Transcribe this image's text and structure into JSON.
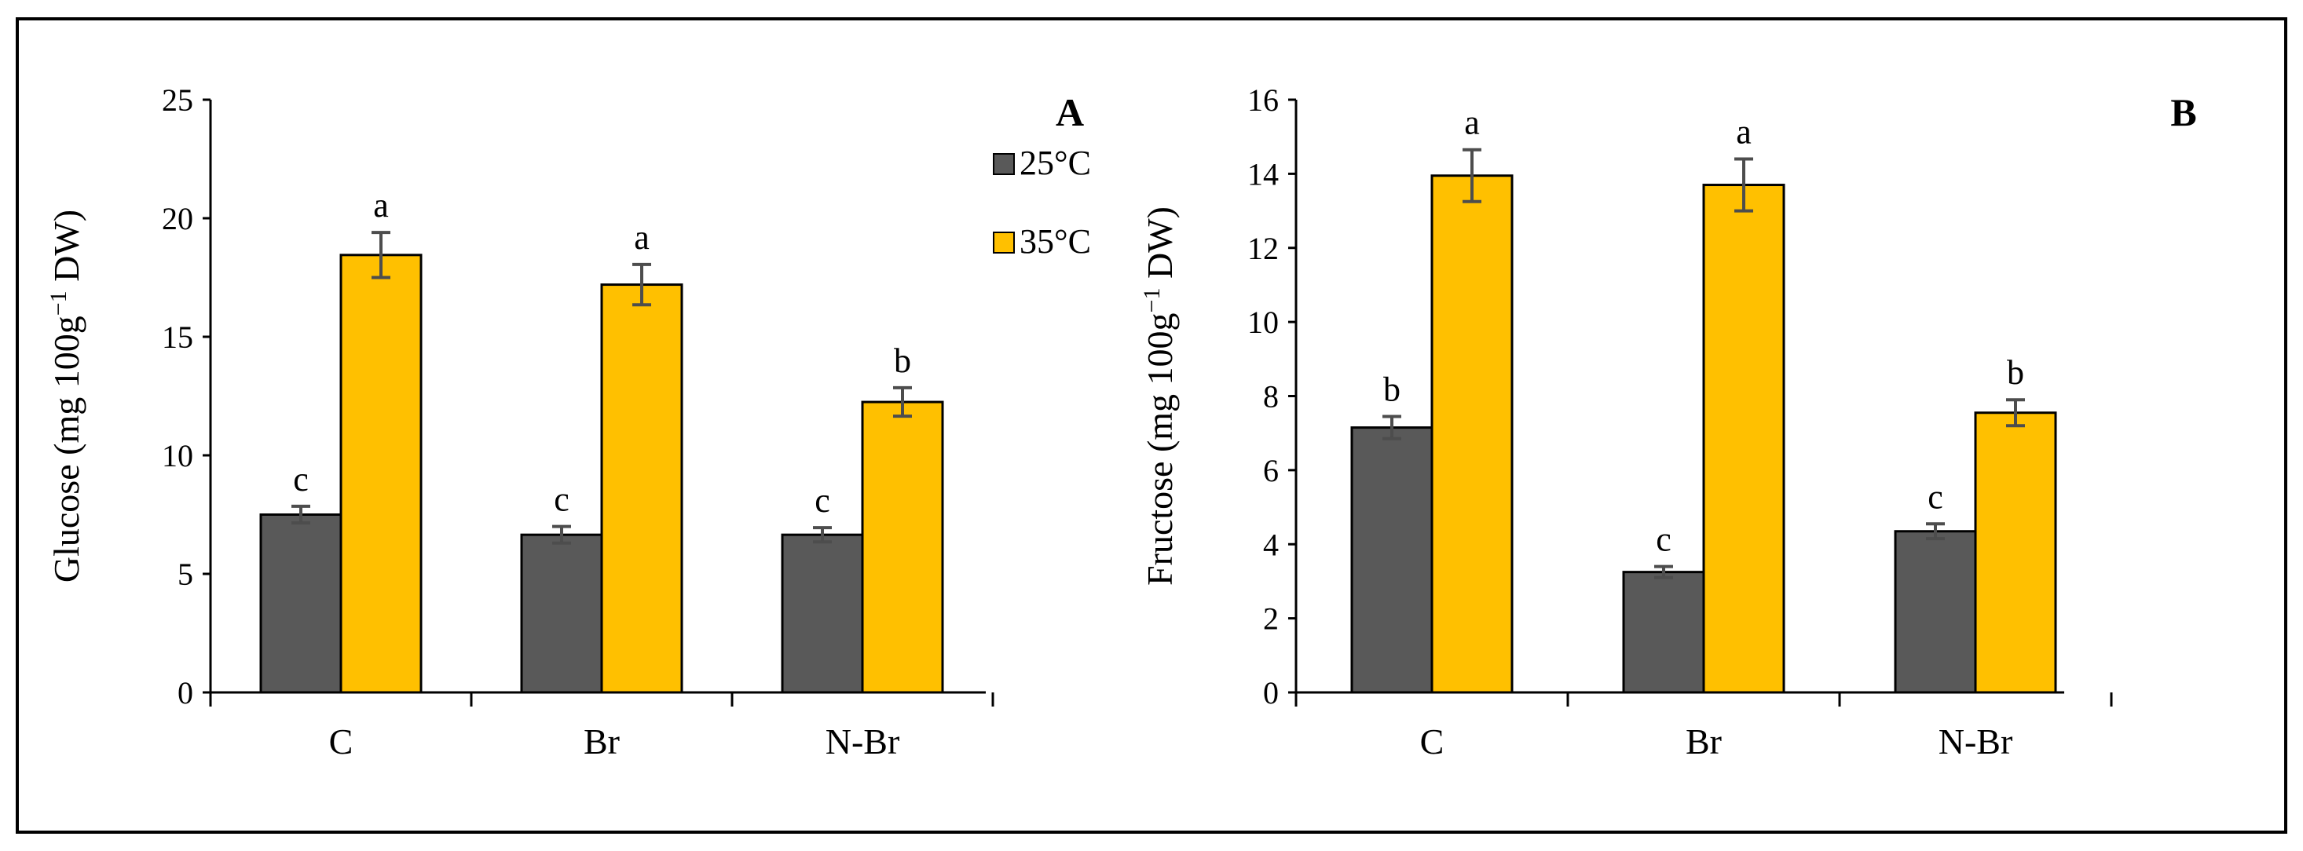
{
  "colors": {
    "series_25": "#595959",
    "series_35": "#FFC000",
    "bar_edge": "#000000",
    "error_bar": "#4d4d4d",
    "frame": "#000000"
  },
  "chart_data": [
    {
      "type": "bar",
      "panel_label": "A",
      "title": "",
      "xlabel": "",
      "ylabel": "Glucose (mg 100g",
      "ylabel_sup": "−1",
      "ylabel_tail": " DW)",
      "categories": [
        "C",
        "Br",
        "N-Br"
      ],
      "ylim": [
        0,
        25
      ],
      "yticks": [
        0,
        5,
        10,
        15,
        20,
        25
      ],
      "legend": {
        "position": "top-right",
        "entries": [
          {
            "label": "25°C",
            "color_key": "series_25"
          },
          {
            "label": "35°C",
            "color_key": "series_35"
          }
        ]
      },
      "series": [
        {
          "name": "25°C",
          "color_key": "series_25",
          "values": [
            7.5,
            6.65,
            6.65
          ],
          "errors": [
            0.35,
            0.35,
            0.3
          ],
          "letters": [
            "c",
            "c",
            "c"
          ]
        },
        {
          "name": "35°C",
          "color_key": "series_35",
          "values": [
            18.45,
            17.2,
            12.25
          ],
          "errors": [
            0.95,
            0.85,
            0.6
          ],
          "letters": [
            "a",
            "a",
            "b"
          ]
        }
      ]
    },
    {
      "type": "bar",
      "panel_label": "B",
      "title": "",
      "xlabel": "",
      "ylabel": "Fructose (mg 100g",
      "ylabel_sup": "−1",
      "ylabel_tail": " DW)",
      "categories": [
        "C",
        "Br",
        "N-Br"
      ],
      "ylim": [
        0,
        16
      ],
      "yticks": [
        0,
        2,
        4,
        6,
        8,
        10,
        12,
        14,
        16
      ],
      "legend": null,
      "series": [
        {
          "name": "25°C",
          "color_key": "series_25",
          "values": [
            7.15,
            3.25,
            4.35
          ],
          "errors": [
            0.3,
            0.15,
            0.2
          ],
          "letters": [
            "b",
            "c",
            "c"
          ]
        },
        {
          "name": "35°C",
          "color_key": "series_35",
          "values": [
            13.95,
            13.7,
            7.55
          ],
          "errors": [
            0.7,
            0.7,
            0.35
          ],
          "letters": [
            "a",
            "a",
            "b"
          ]
        }
      ]
    }
  ]
}
